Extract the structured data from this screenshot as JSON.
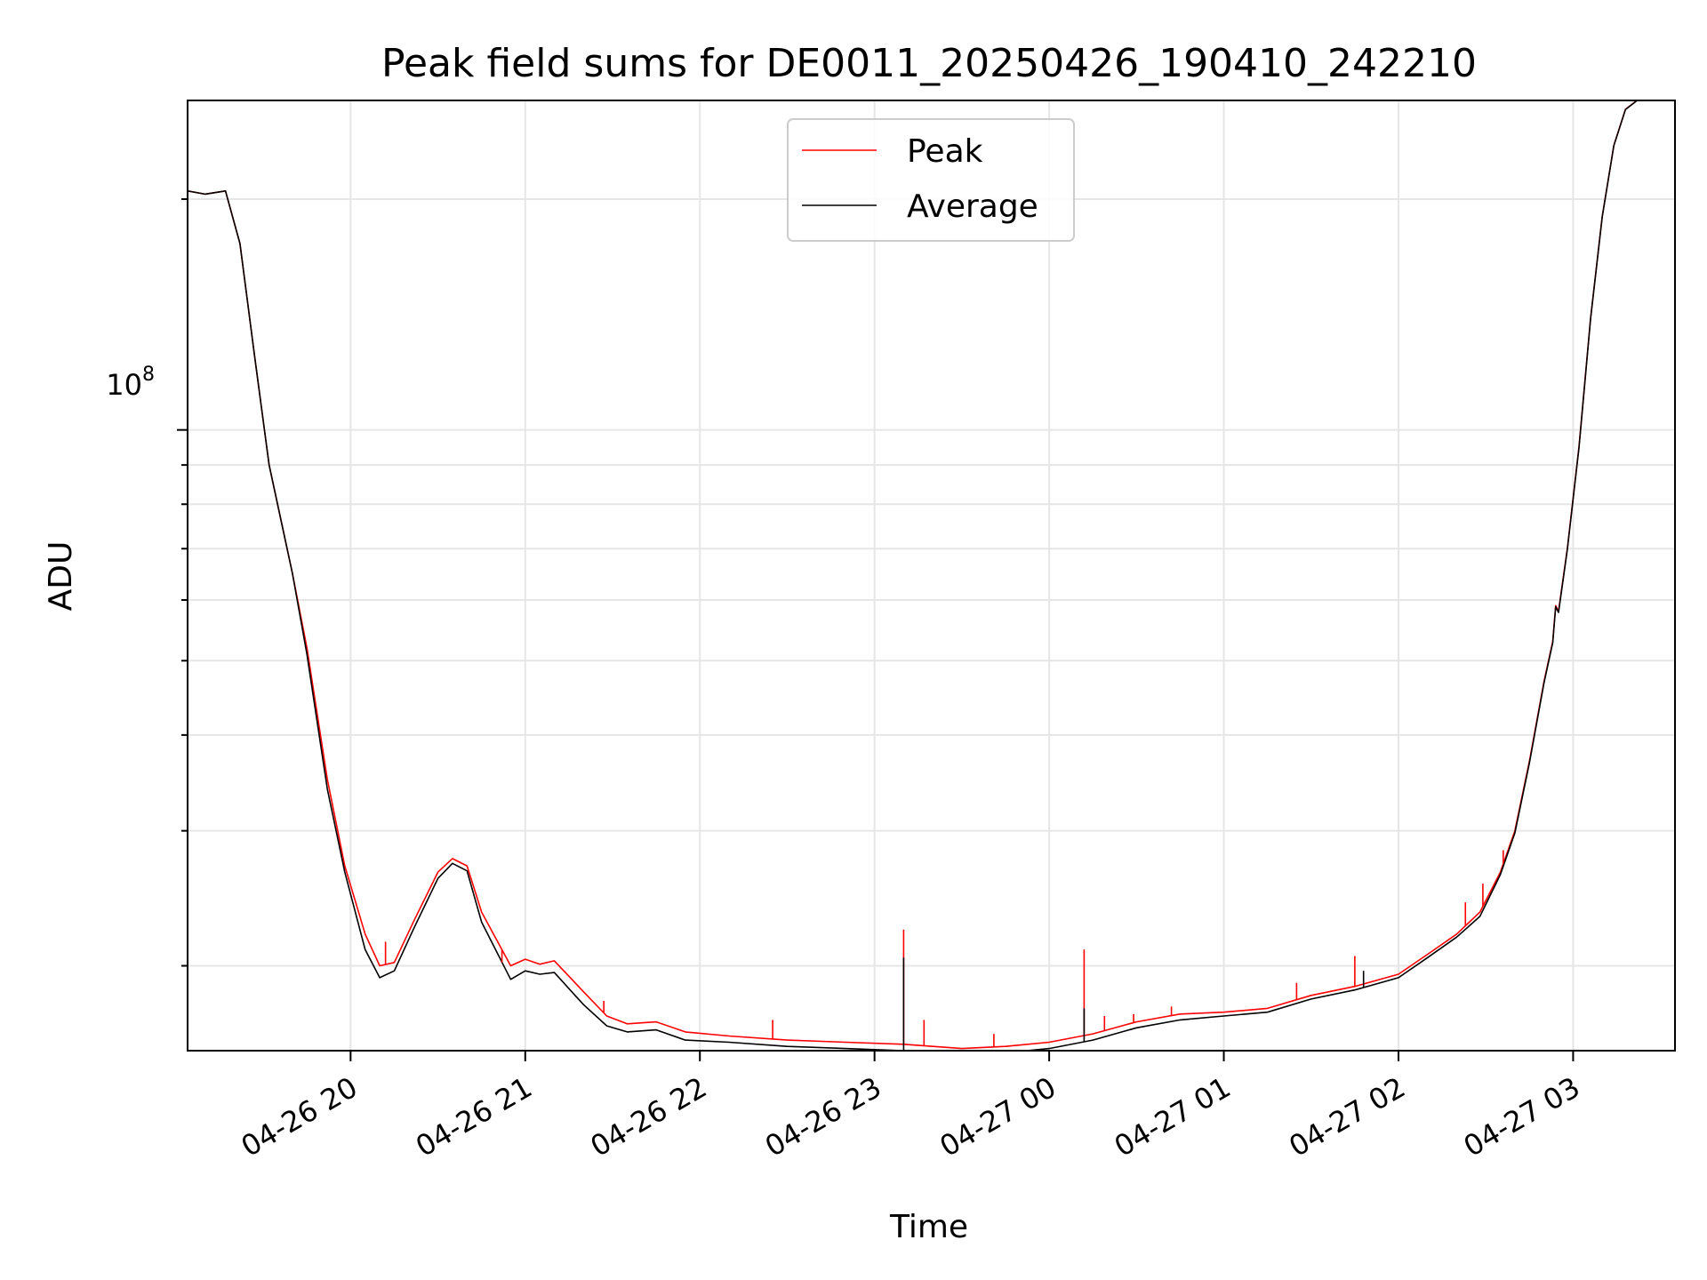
{
  "chart_data": {
    "type": "line",
    "title": "Peak field sums for DE0011_20250426_190410_242210",
    "xlabel": "Time",
    "ylabel": "ADU",
    "x_ticks": [
      "04-26 20",
      "04-26 21",
      "04-26 22",
      "04-26 23",
      "04-27 00",
      "04-27 01",
      "04-27 02",
      "04-27 03"
    ],
    "x_tick_values": [
      "2025-04-26 20:00",
      "2025-04-26 21:00",
      "2025-04-26 22:00",
      "2025-04-26 23:00",
      "2025-04-27 00:00",
      "2025-04-27 01:00",
      "2025-04-27 02:00",
      "2025-04-27 03:00"
    ],
    "xlim": [
      "2025-04-26 19:04",
      "2025-04-27 03:35"
    ],
    "y_scale": "log",
    "y_tick_base": "10",
    "y_tick_exp": "8",
    "ylim": [
      15500000,
      269000000
    ],
    "grid": true,
    "legend_position": "upper center",
    "series": [
      {
        "name": "Peak",
        "color": "#ff0000",
        "points": [
          [
            "2025-04-26 19:04",
            205000000
          ],
          [
            "2025-04-26 19:10",
            203000000
          ],
          [
            "2025-04-26 19:17",
            205000000
          ],
          [
            "2025-04-26 19:22",
            175000000
          ],
          [
            "2025-04-26 19:27",
            125000000
          ],
          [
            "2025-04-26 19:32",
            90000000
          ],
          [
            "2025-04-26 19:40",
            65000000
          ],
          [
            "2025-04-26 19:45",
            52000000
          ],
          [
            "2025-04-26 19:52",
            35000000
          ],
          [
            "2025-04-26 19:58",
            27000000
          ],
          [
            "2025-04-26 20:05",
            22000000
          ],
          [
            "2025-04-26 20:10",
            20000000
          ],
          [
            "2025-04-26 20:15",
            20200000
          ],
          [
            "2025-04-26 20:22",
            23000000
          ],
          [
            "2025-04-26 20:30",
            26500000
          ],
          [
            "2025-04-26 20:35",
            27600000
          ],
          [
            "2025-04-26 20:40",
            27000000
          ],
          [
            "2025-04-26 20:45",
            23500000
          ],
          [
            "2025-04-26 20:55",
            20000000
          ],
          [
            "2025-04-26 21:00",
            20400000
          ],
          [
            "2025-04-26 21:05",
            20100000
          ],
          [
            "2025-04-26 21:10",
            20300000
          ],
          [
            "2025-04-26 21:20",
            18500000
          ],
          [
            "2025-04-26 21:28",
            17200000
          ],
          [
            "2025-04-26 21:35",
            16800000
          ],
          [
            "2025-04-26 21:45",
            16900000
          ],
          [
            "2025-04-26 21:55",
            16400000
          ],
          [
            "2025-04-26 22:10",
            16200000
          ],
          [
            "2025-04-26 22:30",
            16000000
          ],
          [
            "2025-04-26 22:50",
            15900000
          ],
          [
            "2025-04-26 23:10",
            15800000
          ],
          [
            "2025-04-26 23:30",
            15600000
          ],
          [
            "2025-04-26 23:45",
            15700000
          ],
          [
            "2025-04-27 00:00",
            15900000
          ],
          [
            "2025-04-27 00:15",
            16300000
          ],
          [
            "2025-04-27 00:30",
            16900000
          ],
          [
            "2025-04-27 00:45",
            17300000
          ],
          [
            "2025-04-27 01:00",
            17400000
          ],
          [
            "2025-04-27 01:15",
            17600000
          ],
          [
            "2025-04-27 01:30",
            18300000
          ],
          [
            "2025-04-27 01:45",
            18800000
          ],
          [
            "2025-04-27 02:00",
            19500000
          ],
          [
            "2025-04-27 02:10",
            20700000
          ],
          [
            "2025-04-27 02:20",
            22000000
          ],
          [
            "2025-04-27 02:28",
            23500000
          ],
          [
            "2025-04-27 02:35",
            26500000
          ],
          [
            "2025-04-27 02:40",
            30000000
          ],
          [
            "2025-04-27 02:45",
            37000000
          ],
          [
            "2025-04-27 02:50",
            47000000
          ],
          [
            "2025-04-27 02:53",
            53000000
          ],
          [
            "2025-04-27 02:54",
            59000000
          ],
          [
            "2025-04-27 02:55",
            58000000
          ],
          [
            "2025-04-27 02:58",
            70000000
          ],
          [
            "2025-04-27 03:02",
            95000000
          ],
          [
            "2025-04-27 03:06",
            140000000
          ],
          [
            "2025-04-27 03:10",
            190000000
          ],
          [
            "2025-04-27 03:14",
            235000000
          ],
          [
            "2025-04-27 03:18",
            262000000
          ],
          [
            "2025-04-27 03:22",
            269000000
          ]
        ]
      },
      {
        "name": "Average",
        "color": "#000000",
        "points": [
          [
            "2025-04-26 19:04",
            205000000
          ],
          [
            "2025-04-26 19:10",
            203000000
          ],
          [
            "2025-04-26 19:17",
            205000000
          ],
          [
            "2025-04-26 19:22",
            175000000
          ],
          [
            "2025-04-26 19:27",
            125000000
          ],
          [
            "2025-04-26 19:32",
            90000000
          ],
          [
            "2025-04-26 19:40",
            65000000
          ],
          [
            "2025-04-26 19:45",
            51000000
          ],
          [
            "2025-04-26 19:52",
            34000000
          ],
          [
            "2025-04-26 19:58",
            26500000
          ],
          [
            "2025-04-26 20:05",
            21000000
          ],
          [
            "2025-04-26 20:10",
            19300000
          ],
          [
            "2025-04-26 20:15",
            19700000
          ],
          [
            "2025-04-26 20:22",
            22500000
          ],
          [
            "2025-04-26 20:30",
            26000000
          ],
          [
            "2025-04-26 20:35",
            27200000
          ],
          [
            "2025-04-26 20:40",
            26600000
          ],
          [
            "2025-04-26 20:45",
            22800000
          ],
          [
            "2025-04-26 20:55",
            19200000
          ],
          [
            "2025-04-26 21:00",
            19700000
          ],
          [
            "2025-04-26 21:05",
            19500000
          ],
          [
            "2025-04-26 21:10",
            19600000
          ],
          [
            "2025-04-26 21:20",
            17800000
          ],
          [
            "2025-04-26 21:28",
            16700000
          ],
          [
            "2025-04-26 21:35",
            16400000
          ],
          [
            "2025-04-26 21:45",
            16500000
          ],
          [
            "2025-04-26 21:55",
            16000000
          ],
          [
            "2025-04-26 22:10",
            15900000
          ],
          [
            "2025-04-26 22:30",
            15700000
          ],
          [
            "2025-04-26 22:50",
            15600000
          ],
          [
            "2025-04-26 23:10",
            15500000
          ],
          [
            "2025-04-26 23:30",
            15400000
          ],
          [
            "2025-04-26 23:45",
            15400000
          ],
          [
            "2025-04-27 00:00",
            15600000
          ],
          [
            "2025-04-27 00:15",
            16000000
          ],
          [
            "2025-04-27 00:30",
            16600000
          ],
          [
            "2025-04-27 00:45",
            17000000
          ],
          [
            "2025-04-27 01:00",
            17200000
          ],
          [
            "2025-04-27 01:15",
            17400000
          ],
          [
            "2025-04-27 01:30",
            18100000
          ],
          [
            "2025-04-27 01:45",
            18600000
          ],
          [
            "2025-04-27 02:00",
            19300000
          ],
          [
            "2025-04-27 02:10",
            20500000
          ],
          [
            "2025-04-27 02:20",
            21800000
          ],
          [
            "2025-04-27 02:28",
            23200000
          ],
          [
            "2025-04-27 02:35",
            26300000
          ],
          [
            "2025-04-27 02:40",
            29800000
          ],
          [
            "2025-04-27 02:45",
            36800000
          ],
          [
            "2025-04-27 02:50",
            46800000
          ],
          [
            "2025-04-27 02:53",
            52800000
          ],
          [
            "2025-04-27 02:54",
            58800000
          ],
          [
            "2025-04-27 02:55",
            57800000
          ],
          [
            "2025-04-27 02:58",
            69800000
          ],
          [
            "2025-04-27 03:02",
            94800000
          ],
          [
            "2025-04-27 03:06",
            139800000
          ],
          [
            "2025-04-27 03:10",
            189800000
          ],
          [
            "2025-04-27 03:14",
            234800000
          ],
          [
            "2025-04-27 03:18",
            261800000
          ],
          [
            "2025-04-27 03:22",
            269000000
          ]
        ]
      }
    ],
    "spikes": [
      {
        "series": "Peak",
        "x": "2025-04-26 20:12",
        "y": 21500000
      },
      {
        "series": "Peak",
        "x": "2025-04-26 20:52",
        "y": 20200000
      },
      {
        "series": "Peak",
        "x": "2025-04-26 21:27",
        "y": 18000000
      },
      {
        "series": "Peak",
        "x": "2025-04-26 22:25",
        "y": 17000000
      },
      {
        "series": "Peak",
        "x": "2025-04-26 23:10",
        "y": 22300000
      },
      {
        "series": "Peak",
        "x": "2025-04-26 23:17",
        "y": 17000000
      },
      {
        "series": "Peak",
        "x": "2025-04-26 23:41",
        "y": 16300000
      },
      {
        "series": "Peak",
        "x": "2025-04-27 00:12",
        "y": 21000000
      },
      {
        "series": "Peak",
        "x": "2025-04-27 00:19",
        "y": 17200000
      },
      {
        "series": "Peak",
        "x": "2025-04-27 00:29",
        "y": 17300000
      },
      {
        "series": "Peak",
        "x": "2025-04-27 00:42",
        "y": 17700000
      },
      {
        "series": "Peak",
        "x": "2025-04-27 01:25",
        "y": 19000000
      },
      {
        "series": "Peak",
        "x": "2025-04-27 01:45",
        "y": 20600000
      },
      {
        "series": "Peak",
        "x": "2025-04-27 02:23",
        "y": 24200000
      },
      {
        "series": "Peak",
        "x": "2025-04-27 02:29",
        "y": 25600000
      },
      {
        "series": "Peak",
        "x": "2025-04-27 02:36",
        "y": 28300000
      },
      {
        "series": "Average",
        "x": "2025-04-26 23:10",
        "y": 20500000
      },
      {
        "series": "Average",
        "x": "2025-04-27 00:12",
        "y": 17600000
      },
      {
        "series": "Average",
        "x": "2025-04-27 01:48",
        "y": 19700000
      }
    ]
  }
}
